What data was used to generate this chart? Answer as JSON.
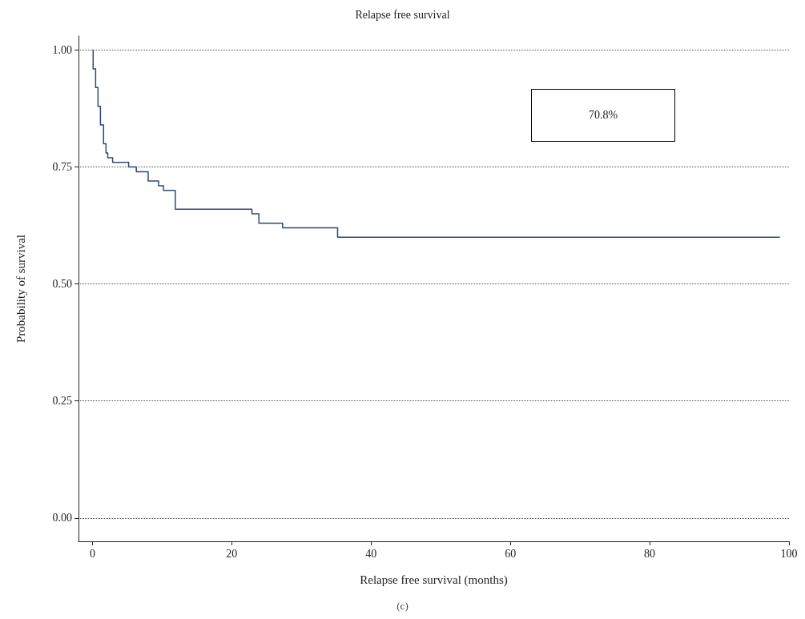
{
  "chart_data": {
    "type": "step",
    "title": "Relapse free survival",
    "xlabel": "Relapse free survival (months)",
    "ylabel": "Probability of survival",
    "x": [
      0,
      0.1,
      0.46,
      0.8,
      1.15,
      1.6,
      1.95,
      2.2,
      2.9,
      4.1,
      5.2,
      6.3,
      8.0,
      9.5,
      10.2,
      11.9,
      22.9,
      23.9,
      27.3,
      35.2,
      98.7
    ],
    "series": [
      {
        "color": "#2c4a78",
        "values": [
          1.0,
          0.96,
          0.92,
          0.88,
          0.84,
          0.8,
          0.78,
          0.77,
          0.76,
          0.76,
          0.75,
          0.74,
          0.72,
          0.71,
          0.7,
          0.66,
          0.65,
          0.63,
          0.62,
          0.6,
          0.6
        ]
      }
    ],
    "xlim": [
      -2,
      100
    ],
    "xticks": [
      0,
      20,
      40,
      60,
      80,
      100
    ],
    "ylim": [
      -0.05,
      1.03
    ],
    "yticks": [
      {
        "value": 0,
        "label": "0.00"
      },
      {
        "value": 0.25,
        "label": "0.25"
      },
      {
        "value": 0.5,
        "label": "0.50"
      },
      {
        "value": 0.75,
        "label": "0.75"
      },
      {
        "value": 1,
        "label": "1.00"
      }
    ],
    "grid": "y",
    "line_style": "solid",
    "marker": "none",
    "annotations": [
      "70.8%",
      "(c)"
    ]
  }
}
